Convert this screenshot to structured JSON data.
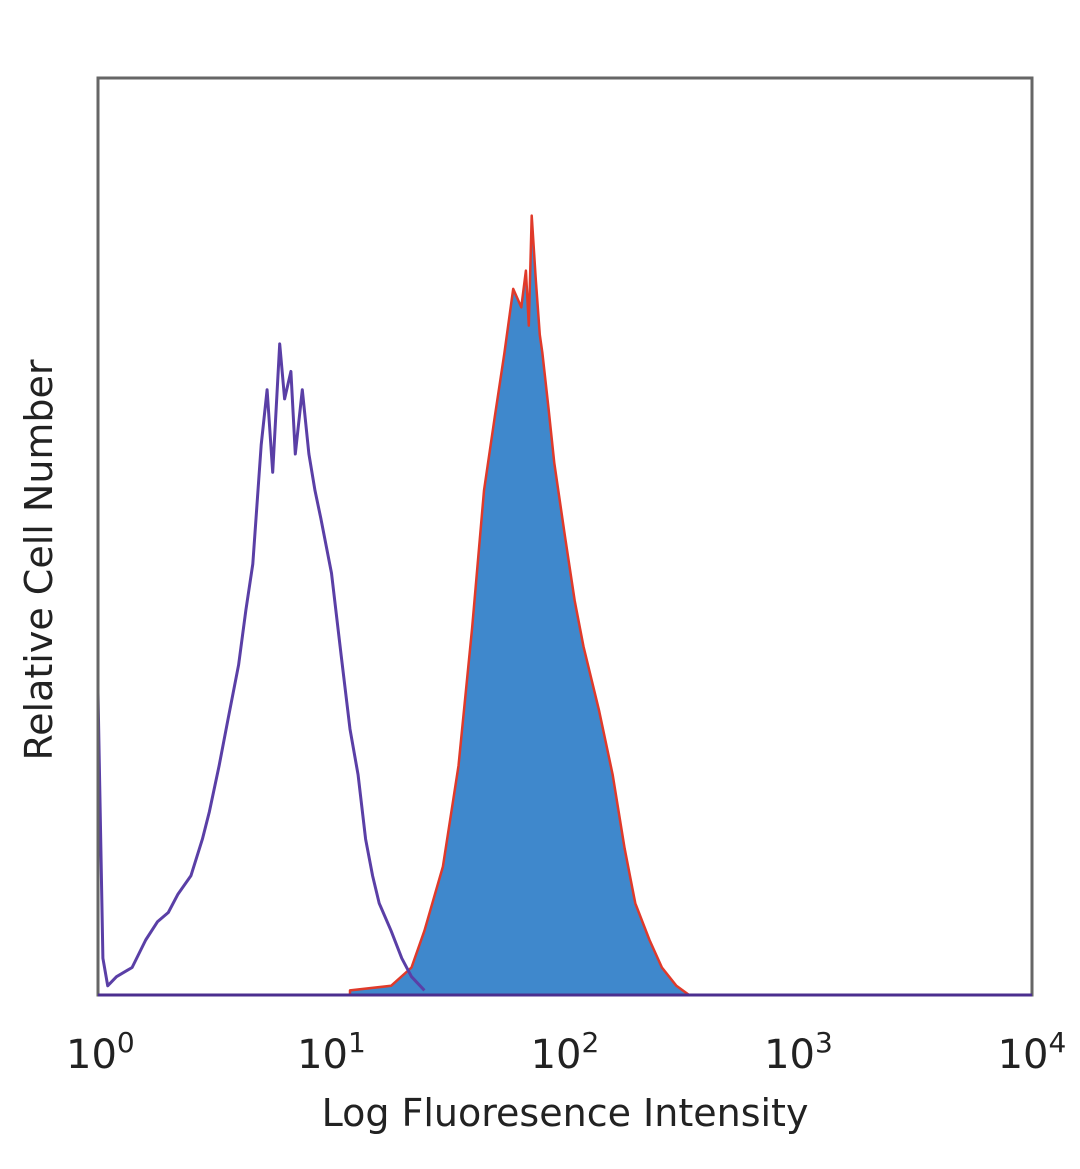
{
  "chart_data": {
    "type": "area",
    "xlabel": "Log Fluoresence Intensity",
    "ylabel": "Relative Cell Number",
    "x_scale": "log",
    "xlim": [
      1,
      10000
    ],
    "ylim": [
      0,
      100
    ],
    "grid": false,
    "x_ticks": [
      {
        "base": "10",
        "exp": "0",
        "value": 1
      },
      {
        "base": "10",
        "exp": "1",
        "value": 10
      },
      {
        "base": "10",
        "exp": "2",
        "value": 100
      },
      {
        "base": "10",
        "exp": "3",
        "value": 1000
      },
      {
        "base": "10",
        "exp": "4",
        "value": 10000
      }
    ],
    "series": [
      {
        "style": "filled",
        "color": "#3f88cc",
        "edge_color": "#e03a2a",
        "x": [
          12,
          18,
          22,
          25,
          30,
          35,
          40,
          45,
          50,
          55,
          60,
          65,
          68,
          70,
          72,
          75,
          78,
          80,
          85,
          90,
          100,
          110,
          120,
          140,
          160,
          180,
          200,
          230,
          260,
          300,
          340
        ],
        "y": [
          0.5,
          1,
          3,
          7,
          14,
          25,
          40,
          55,
          63,
          70,
          77,
          75,
          79,
          73,
          85,
          78,
          72,
          70,
          64,
          58,
          50,
          43,
          38,
          31,
          24,
          16,
          10,
          6,
          3,
          1,
          0
        ]
      },
      {
        "style": "outline",
        "color": "#5a3fa6",
        "x": [
          1,
          1.05,
          1.1,
          1.2,
          1.4,
          1.6,
          1.8,
          2,
          2.2,
          2.5,
          2.8,
          3,
          3.3,
          3.6,
          4,
          4.3,
          4.6,
          5,
          5.3,
          5.6,
          6,
          6.3,
          6.7,
          7,
          7.5,
          8,
          8.5,
          9,
          10,
          11,
          12,
          13,
          14,
          15,
          16,
          18,
          20,
          22,
          25
        ],
        "y": [
          33,
          4,
          1,
          2,
          3,
          6,
          8,
          9,
          11,
          13,
          17,
          20,
          25,
          30,
          36,
          42,
          47,
          60,
          66,
          57,
          71,
          65,
          68,
          59,
          66,
          59,
          55,
          52,
          46,
          37,
          29,
          24,
          17,
          13,
          10,
          7,
          4,
          2,
          0.5
        ]
      }
    ]
  }
}
